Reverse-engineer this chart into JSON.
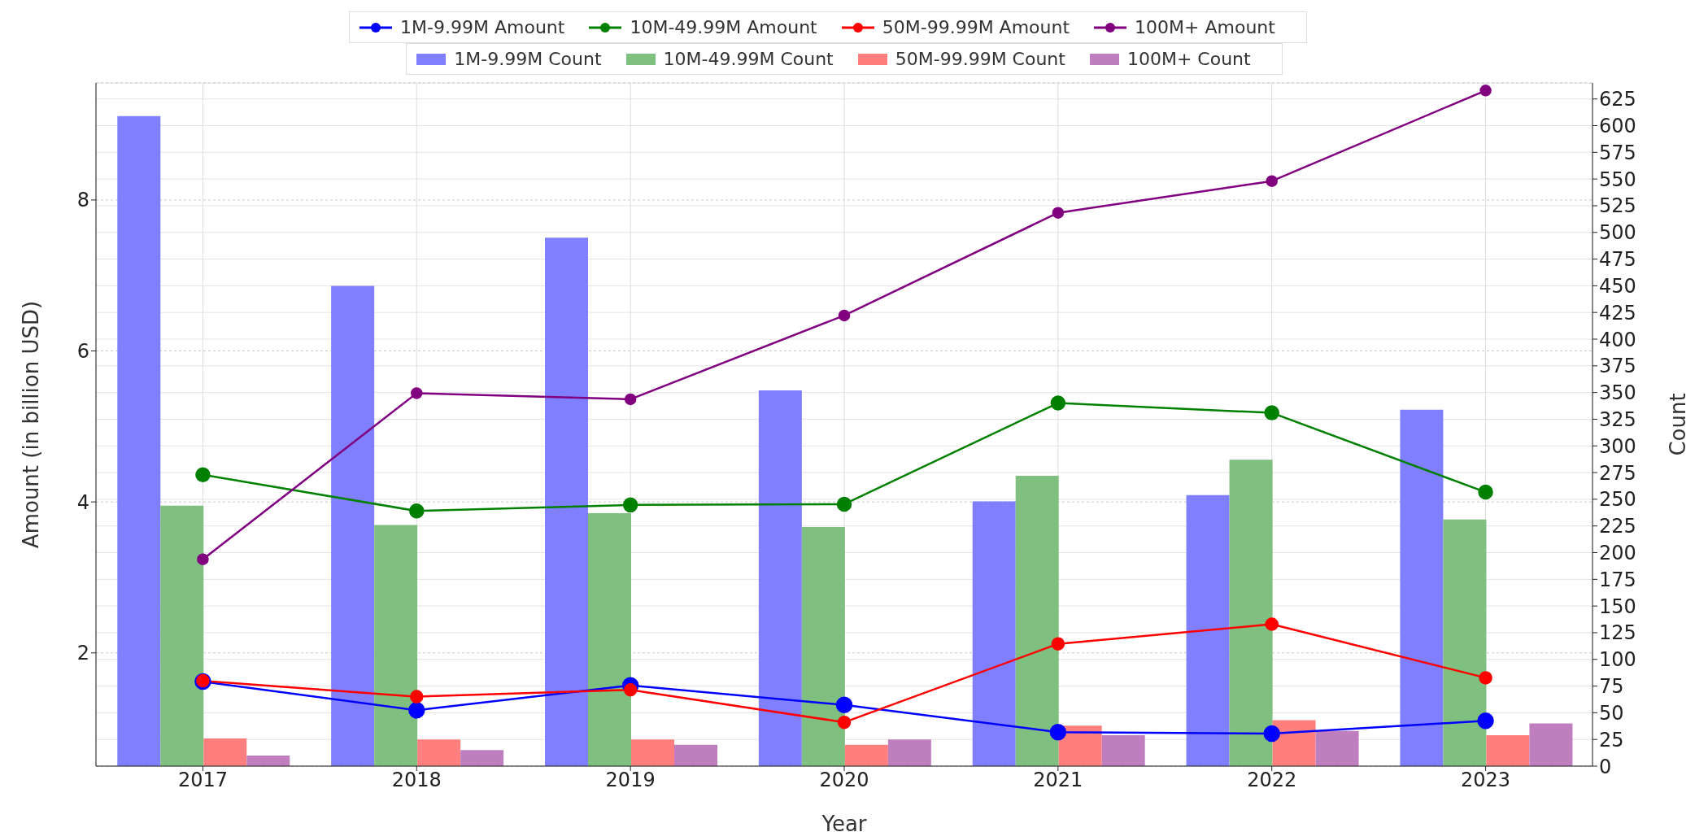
{
  "chart_data": {
    "type": "bar",
    "xlabel": "Year",
    "ylabel": "Amount (in billion USD)",
    "y2label": "Count",
    "categories": [
      "2017",
      "2018",
      "2019",
      "2020",
      "2021",
      "2022",
      "2023"
    ],
    "series": [
      {
        "name": "1M-9.99M Count",
        "axis": "y2",
        "color": "#7f7fff",
        "values": [
          609,
          450,
          495,
          352,
          248,
          254,
          334
        ]
      },
      {
        "name": "10M-49.99M Count",
        "axis": "y2",
        "color": "#7fbf7f",
        "values": [
          244,
          226,
          237,
          224,
          272,
          287,
          231
        ]
      },
      {
        "name": "50M-99.99M Count",
        "axis": "y2",
        "color": "#ff7f7f",
        "values": [
          26,
          25,
          25,
          20,
          38,
          43,
          29
        ]
      },
      {
        "name": "100M+ Count",
        "axis": "y2",
        "color": "#bf7fbf",
        "values": [
          10,
          15,
          20,
          25,
          29,
          33,
          40
        ]
      },
      {
        "name": "1M-9.99M Amount",
        "type": "line",
        "axis": "y",
        "color": "#0000ff",
        "values": [
          1.62,
          1.24,
          1.57,
          1.31,
          0.95,
          0.93,
          1.1
        ]
      },
      {
        "name": "10M-49.99M Amount",
        "type": "line",
        "axis": "y",
        "color": "#008000",
        "values": [
          4.36,
          3.88,
          3.96,
          3.97,
          5.31,
          5.18,
          4.13
        ]
      },
      {
        "name": "50M-99.99M Amount",
        "type": "line",
        "axis": "y",
        "color": "#ff0000",
        "values": [
          1.63,
          1.42,
          1.51,
          1.08,
          2.12,
          2.38,
          1.67
        ]
      },
      {
        "name": "100M+ Amount",
        "type": "line",
        "axis": "y",
        "color": "#800080",
        "values": [
          3.24,
          5.44,
          5.36,
          6.47,
          7.83,
          8.25,
          9.45
        ]
      }
    ],
    "ylim": [
      0.5,
      9.55
    ],
    "yticks": [
      2,
      4,
      6,
      8
    ],
    "y2lim": [
      0,
      640
    ],
    "y2ticks": [
      0,
      25,
      50,
      75,
      100,
      125,
      150,
      175,
      200,
      225,
      250,
      275,
      300,
      325,
      350,
      375,
      400,
      425,
      450,
      475,
      500,
      525,
      550,
      575,
      600,
      625
    ],
    "grid": true,
    "legend": "top",
    "marker": "circle",
    "line_style": "solid"
  }
}
